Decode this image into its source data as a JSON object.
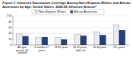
{
  "chart_data": {
    "type": "bar",
    "title": "Figure 1. Influenza Vaccination Coverage Among Non-Hispanic Whites and African Americans by Age, United States, 2008-09 Influenza Season*",
    "categories": [
      "All ages groups (≥6 months)",
      "6 months-17 years",
      "18-49 years",
      "18-49 years, high risk",
      "50-64 years",
      "65+ years"
    ],
    "series": [
      {
        "name": "Non-Hispanic Whites",
        "color": "#e8eaf0",
        "values": [
          38,
          25,
          25,
          36,
          45,
          68
        ]
      },
      {
        "name": "African Americans",
        "color": "#27407a",
        "values": [
          30,
          27,
          19,
          32,
          34,
          51
        ]
      }
    ],
    "ylim": [
      0,
      100
    ],
    "yticks": [
      0,
      20,
      40,
      60,
      80,
      100
    ],
    "grid": true,
    "legend": "top"
  }
}
